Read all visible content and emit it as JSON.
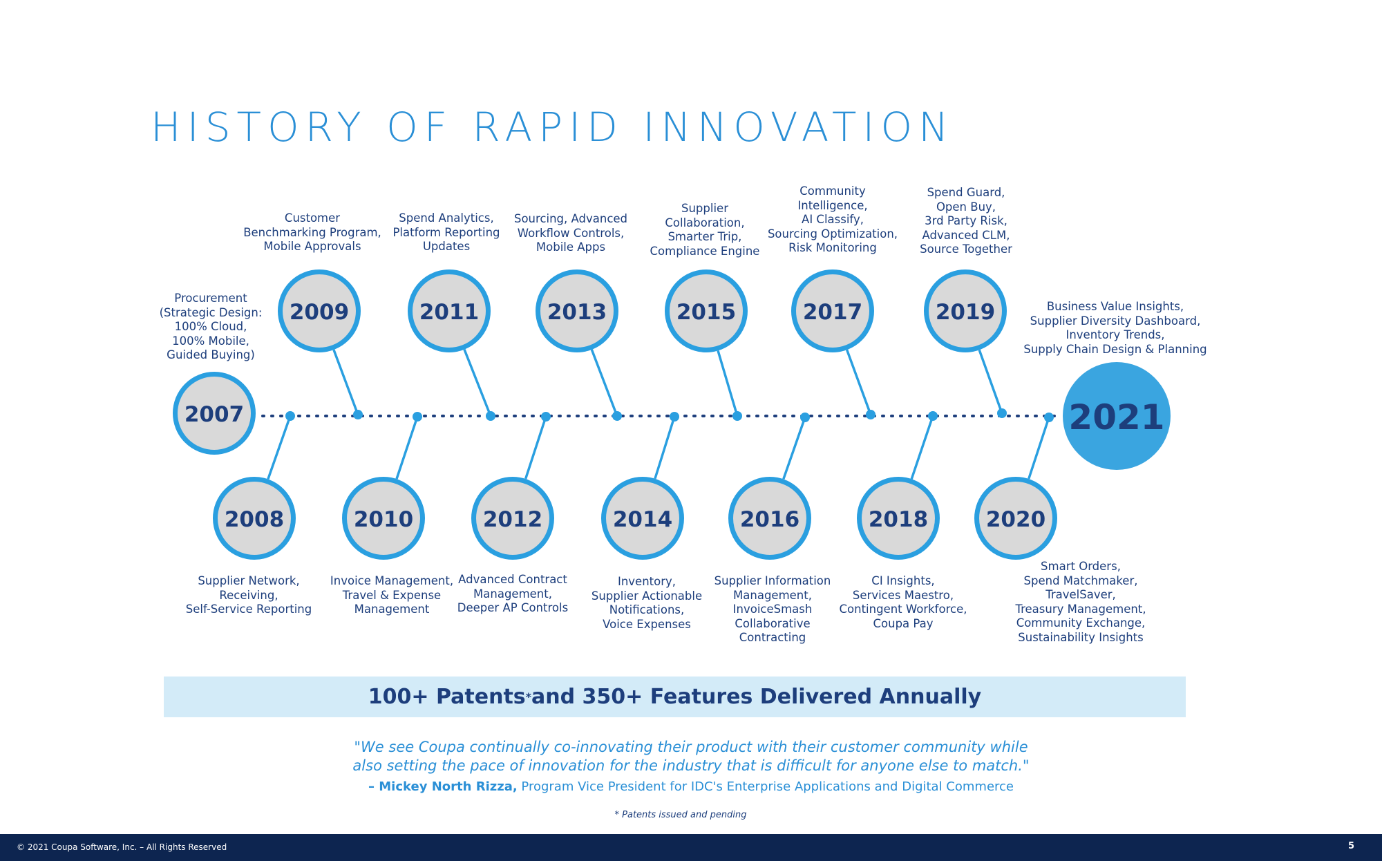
{
  "title": "HISTORY OF RAPID INNOVATION",
  "milestones": [
    {
      "year": "2007",
      "text": "Procurement\n(Strategic Design:\n100% Cloud,\n100% Mobile,\nGuided Buying)"
    },
    {
      "year": "2008",
      "text": "Supplier Network,\nReceiving,\nSelf-Service Reporting"
    },
    {
      "year": "2009",
      "text": "Customer\nBenchmarking Program,\nMobile Approvals"
    },
    {
      "year": "2010",
      "text": "Invoice Management,\nTravel & Expense\nManagement"
    },
    {
      "year": "2011",
      "text": "Spend Analytics,\nPlatform Reporting\nUpdates"
    },
    {
      "year": "2012",
      "text": "Advanced Contract\nManagement,\nDeeper AP Controls"
    },
    {
      "year": "2013",
      "text": "Sourcing, Advanced\nWorkflow Controls,\nMobile Apps"
    },
    {
      "year": "2014",
      "text": "Inventory,\nSupplier Actionable\nNotifications,\nVoice Expenses"
    },
    {
      "year": "2015",
      "text": "Supplier\nCollaboration,\nSmarter Trip,\nCompliance Engine"
    },
    {
      "year": "2016",
      "text": "Supplier Information\nManagement,\nInvoiceSmash\nCollaborative\nContracting"
    },
    {
      "year": "2017",
      "text": "Community\nIntelligence,\nAI Classify,\nSourcing Optimization,\nRisk Monitoring"
    },
    {
      "year": "2018",
      "text": "CI Insights,\nServices Maestro,\nContingent Workforce,\nCoupa Pay"
    },
    {
      "year": "2019",
      "text": "Spend Guard,\nOpen Buy,\n3rd Party Risk,\nAdvanced CLM,\nSource Together"
    },
    {
      "year": "2020",
      "text": "Smart Orders,\nSpend Matchmaker,\nTravelSaver,\nTreasury Management,\nCommunity Exchange,\nSustainability Insights"
    },
    {
      "year": "2021",
      "text": "Business Value Insights,\nSupplier Diversity Dashboard,\nInventory Trends,\nSupply Chain Design & Planning"
    }
  ],
  "banner": {
    "part1": "100+ Patents",
    "marker": "*",
    "part2": " and 350+ Features Delivered Annually"
  },
  "quote": {
    "line1": "\"We see Coupa continually co-innovating their product with their customer community while",
    "line2": "also setting the pace of innovation for the industry that is difficult for anyone else to match.\"",
    "author": "– Mickey North Rizza,",
    "role": " Program Vice President for IDC's Enterprise Applications and Digital Commerce"
  },
  "footnote": "* Patents issued and pending",
  "footer": {
    "copyright": "© 2021 Coupa Software, Inc. – All Rights Reserved",
    "page": "5"
  },
  "colors": {
    "ring": "#2a9fe0",
    "fill": "#d9d9d9",
    "navy": "#1d3e7c",
    "highlight": "#3aa5e0",
    "banner": "#d3ebf8",
    "footer": "#0d2550"
  }
}
